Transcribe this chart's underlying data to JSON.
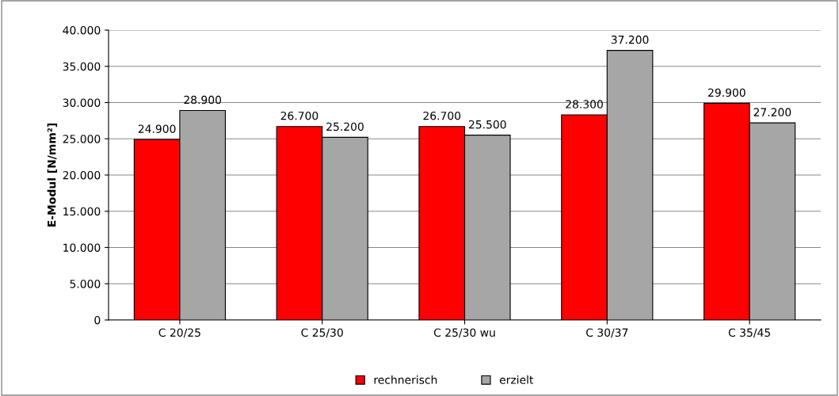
{
  "chart_data": {
    "type": "bar",
    "ylabel": "E-Modul [N/mm²]",
    "categories": [
      "C 20/25",
      "C 25/30",
      "C 25/30 wu",
      "C 30/37",
      "C 35/45"
    ],
    "series": [
      {
        "name": "rechnerisch",
        "color": "#ff0000",
        "values": [
          24900,
          26700,
          26700,
          28300,
          29900
        ],
        "value_labels": [
          "24.900",
          "26.700",
          "26.700",
          "28.300",
          "29.900"
        ]
      },
      {
        "name": "erzielt",
        "color": "#a6a6a6",
        "values": [
          28900,
          25200,
          25500,
          37200,
          27200
        ],
        "value_labels": [
          "28.900",
          "25.200",
          "25.500",
          "37.200",
          "27.200"
        ]
      }
    ],
    "ylim": [
      0,
      40000
    ],
    "yticks": [
      0,
      {
        "value": 5000,
        "label": "5.000"
      },
      {
        "value": 10000,
        "label": "10.000"
      },
      {
        "value": 15000,
        "label": "15.000"
      },
      {
        "value": 20000,
        "label": "20.000"
      },
      {
        "value": 25000,
        "label": "25.000"
      },
      {
        "value": 30000,
        "label": "30.000"
      },
      {
        "value": 35000,
        "label": "35.000"
      },
      {
        "value": 40000,
        "label": "40.000"
      }
    ],
    "grid": "y",
    "legend": "bottom"
  }
}
